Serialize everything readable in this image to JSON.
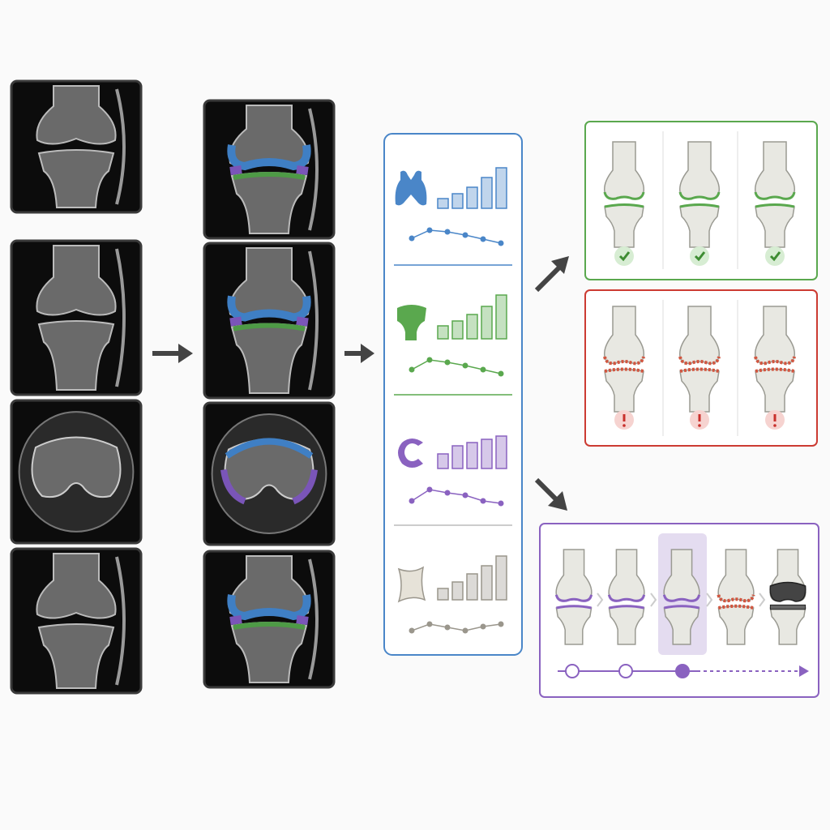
{
  "features": [
    {
      "color": "#4a86c8",
      "bars": [
        12,
        18,
        26,
        38,
        50
      ],
      "trend": [
        13,
        23,
        21,
        17,
        12,
        7
      ]
    },
    {
      "color": "#5aa84e",
      "bars": [
        16,
        22,
        30,
        40,
        54
      ],
      "trend": [
        12,
        24,
        21,
        17,
        12,
        7
      ]
    },
    {
      "color": "#8a62c0",
      "bars": [
        18,
        28,
        32,
        36,
        40
      ],
      "trend": [
        10,
        24,
        20,
        17,
        10,
        7
      ]
    },
    {
      "color": "#9a968c",
      "bars": [
        14,
        22,
        32,
        42,
        54
      ],
      "trend": [
        12,
        20,
        16,
        12,
        17,
        20
      ]
    }
  ]
}
